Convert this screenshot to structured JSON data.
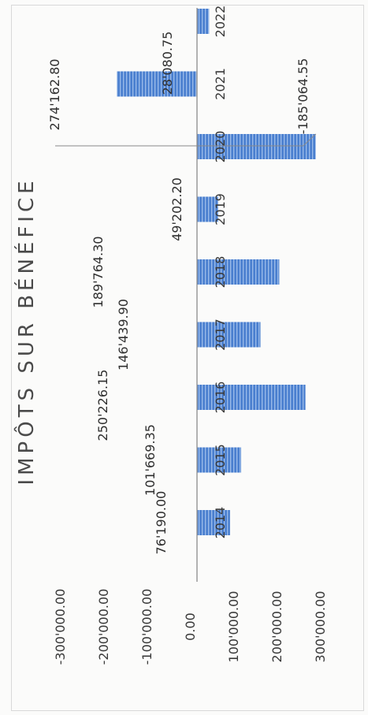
{
  "chart_data": {
    "type": "bar",
    "orientation": "rotated",
    "title": "IMPÔTS SUR BÉNÉFICE",
    "categories": [
      "2014",
      "2015",
      "2016",
      "2017",
      "2018",
      "2019",
      "2020",
      "2021",
      "2022"
    ],
    "values": [
      76190.0,
      101669.35,
      250226.15,
      146439.9,
      189764.3,
      49202.2,
      274162.8,
      -185064.55,
      28080.75
    ],
    "data_labels": [
      "76'190.00",
      "101'669.35",
      "250'226.15",
      "146'439.90",
      "189'764.30",
      "49'202.20",
      "274'162.80",
      "-185'064.55",
      "28'080.75"
    ],
    "ylim": [
      -300000,
      300000
    ],
    "yticks": [
      300000,
      200000,
      100000,
      0,
      -100000,
      -200000,
      -300000
    ],
    "ytick_labels": [
      "300'000.00",
      "200'000.00",
      "100'000.00",
      "0.00",
      "-100'000.00",
      "-200'000.00",
      "-300'000.00"
    ],
    "grid": false,
    "legend": "none",
    "bar_color": "#4a7fcf"
  }
}
